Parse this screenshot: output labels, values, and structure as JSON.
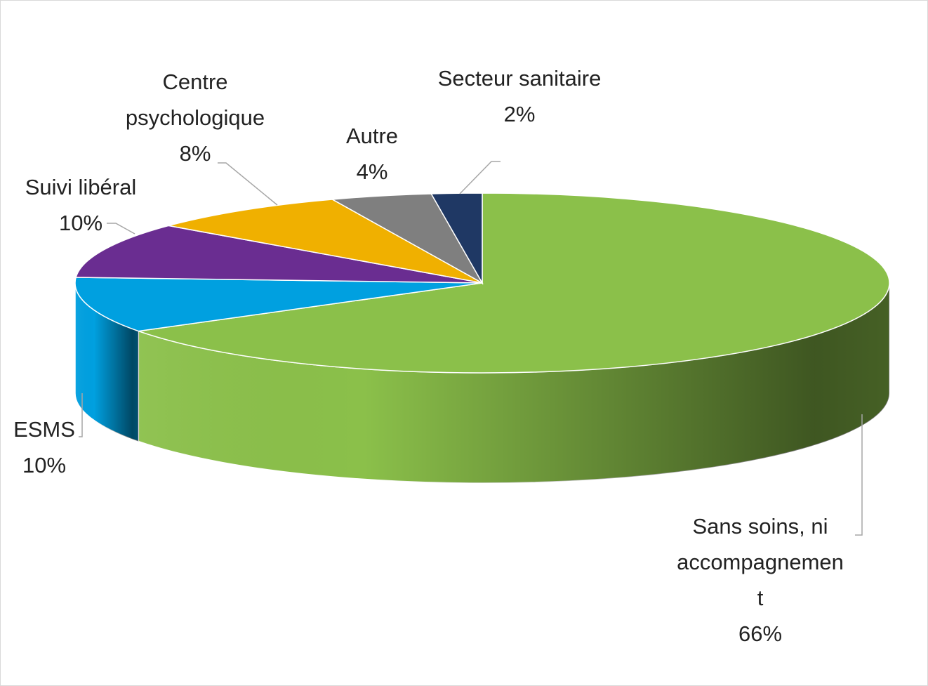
{
  "chart_data": {
    "type": "pie",
    "categories": [
      "Sans soins, ni accompagnement",
      "ESMS",
      "Suivi libéral",
      "Centre psychologique",
      "Autre",
      "Secteur sanitaire"
    ],
    "values": [
      66,
      10,
      10,
      8,
      4,
      2
    ],
    "value_labels": [
      "66%",
      "10%",
      "10%",
      "8%",
      "4%",
      "2%"
    ],
    "colors": [
      "#8bc04a",
      "#00a0e0",
      "#6a2d91",
      "#f0b000",
      "#7f7f7f",
      "#1f3864"
    ]
  }
}
